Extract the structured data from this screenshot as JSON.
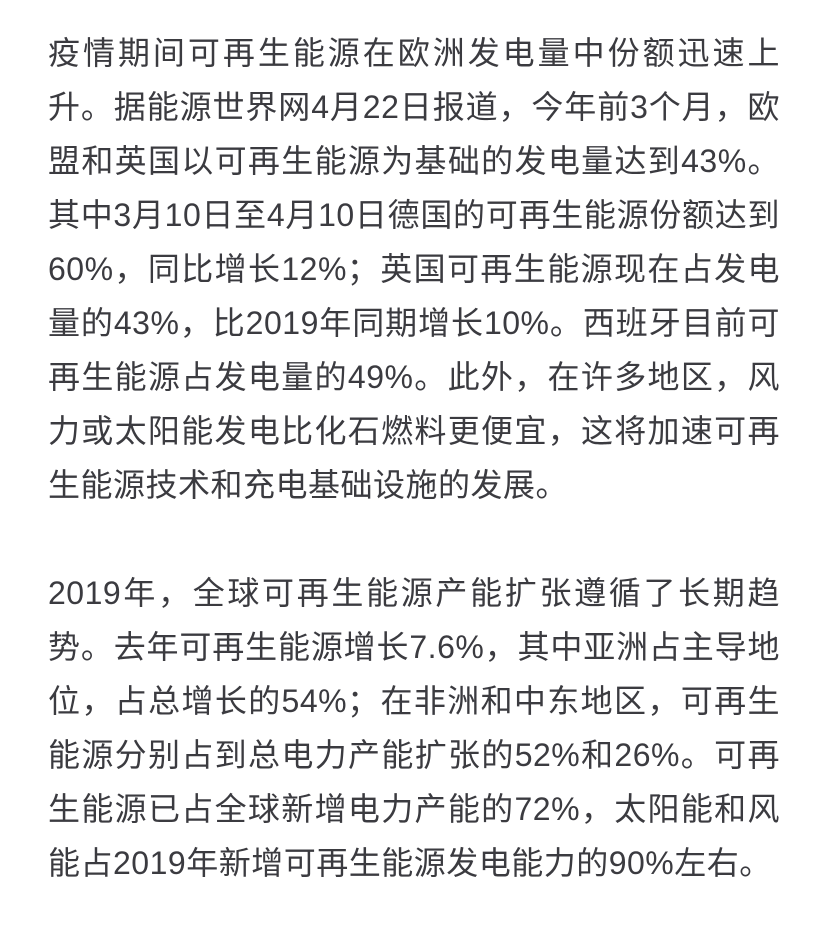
{
  "page": {
    "background_color": "#ffffff",
    "text_color": "#3b3b40"
  },
  "article": {
    "paragraphs": [
      "疫情期间可再生能源在欧洲发电量中份额迅速上升。据能源世界网4月22日报道，今年前3个月，欧盟和英国以可再生能源为基础的发电量达到43%。其中3月10日至4月10日德国的可再生能源份额达到60%，同比增长12%；英国可再生能源现在占发电量的43%，比2019年同期增长10%。西班牙目前可再生能源占发电量的49%。此外，在许多地区，风力或太阳能发电比化石燃料更便宜，这将加速可再生能源技术和充电基础设施的发展。",
      "2019年，全球可再生能源产能扩张遵循了长期趋势。去年可再生能源增长7.6%，其中亚洲占主导地位，占总增长的54%；在非洲和中东地区，可再生能源分别占到总电力产能扩张的52%和26%。可再生能源已占全球新增电力产能的72%，太阳能和风能占2019年新增可再生能源发电能力的90%左右。"
    ]
  }
}
